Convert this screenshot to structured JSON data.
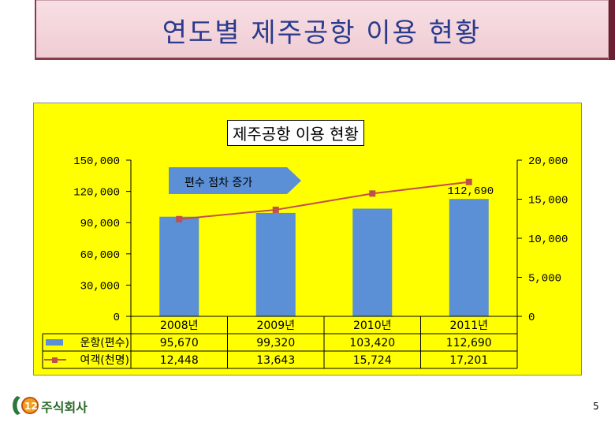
{
  "page": {
    "title": "연도별 제주공항 이용 현황",
    "page_number": "5",
    "logo_text": "123주식회사",
    "logo_number": "123"
  },
  "colors": {
    "bar": "#5b8fd6",
    "line": "#c0504d",
    "panel": "#ffff00"
  },
  "chart_data": {
    "type": "bar",
    "title": "제주공항 이용 현황",
    "categories": [
      "2008년",
      "2009년",
      "2010년",
      "2011년"
    ],
    "series": [
      {
        "name": "운항(편수)",
        "type": "bar",
        "axis": "left",
        "values": [
          95670,
          99320,
          103420,
          112690
        ],
        "display": [
          "95,670",
          "99,320",
          "103,420",
          "112,690"
        ]
      },
      {
        "name": "여객(천명)",
        "type": "line",
        "axis": "right",
        "values": [
          12448,
          13643,
          15724,
          17201
        ],
        "display": [
          "12,448",
          "13,643",
          "15,724",
          "17,201"
        ]
      }
    ],
    "y_left": {
      "min": 0,
      "max": 150000,
      "ticks": [
        "0",
        "30,000",
        "60,000",
        "90,000",
        "120,000",
        "150,000"
      ]
    },
    "y_right": {
      "min": 0,
      "max": 20000,
      "ticks": [
        "0",
        "5,000",
        "10,000",
        "15,000",
        "20,000"
      ]
    },
    "data_label": "112,690",
    "annotation": "편수 점차 증가",
    "legend": "bottom data table"
  }
}
